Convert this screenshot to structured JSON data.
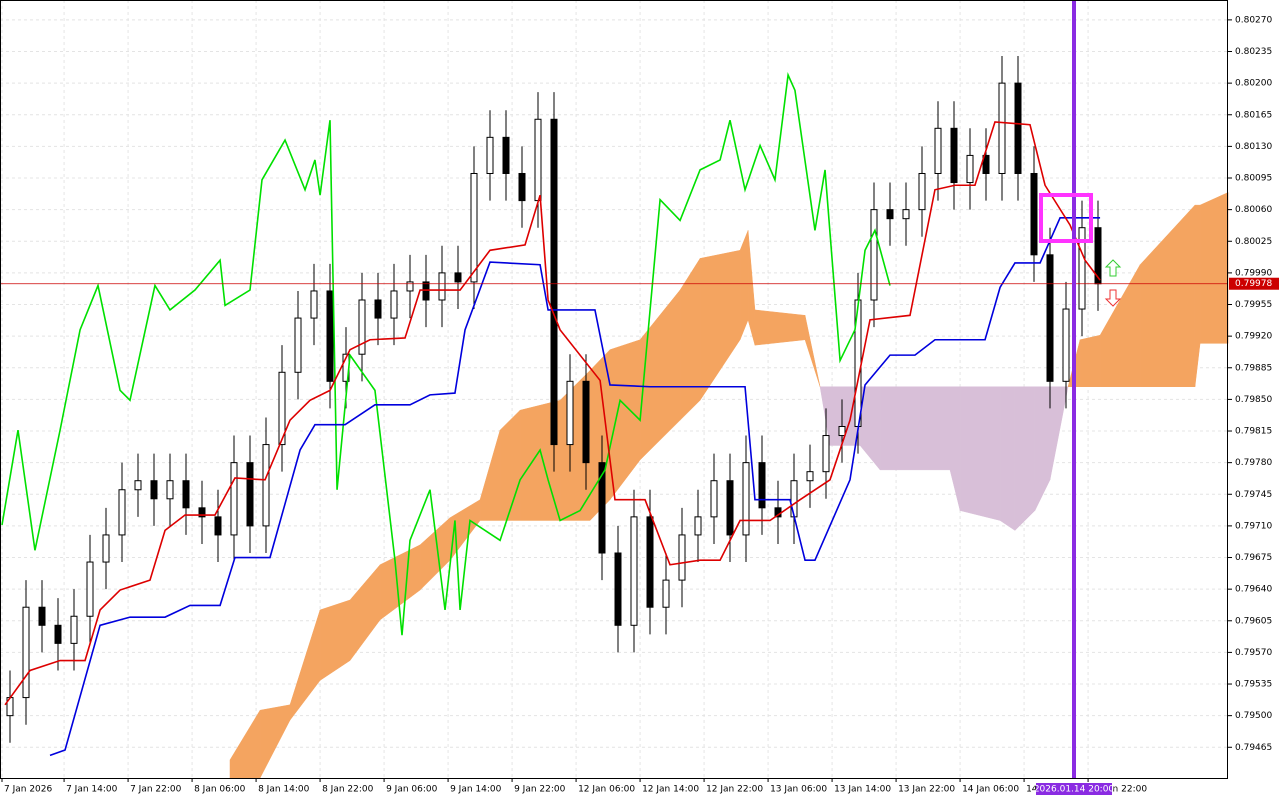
{
  "chart_data": {
    "type": "candlestick",
    "xlim": [
      -0.625,
      76.125
    ],
    "ylim": [
      0.79431,
      0.80292
    ],
    "grid": true,
    "xticks": [
      {
        "value": -0.5,
        "label": "7 Jan 2026"
      },
      {
        "value": 3.38,
        "label": "7 Jan 14:00"
      },
      {
        "value": 7.38,
        "label": "7 Jan 22:00"
      },
      {
        "value": 11.38,
        "label": "8 Jan 06:00"
      },
      {
        "value": 15.38,
        "label": "8 Jan 14:00"
      },
      {
        "value": 19.38,
        "label": "8 Jan 22:00"
      },
      {
        "value": 23.38,
        "label": "9 Jan 06:00"
      },
      {
        "value": 27.38,
        "label": "9 Jan 14:00"
      },
      {
        "value": 31.38,
        "label": "9 Jan 22:00"
      },
      {
        "value": 35.38,
        "label": "12 Jan 06:00"
      },
      {
        "value": 39.38,
        "label": "12 Jan 14:00"
      },
      {
        "value": 43.38,
        "label": "12 Jan 22:00"
      },
      {
        "value": 47.38,
        "label": "13 Jan 06:00"
      },
      {
        "value": 51.38,
        "label": "13 Jan 14:00"
      },
      {
        "value": 55.38,
        "label": "13 Jan 22:00"
      },
      {
        "value": 59.38,
        "label": "14 Jan 06:00"
      },
      {
        "value": 63.38,
        "label": "14 Jan 14:00"
      },
      {
        "value": 67.38,
        "label": "14 Jan 22:00"
      }
    ],
    "yticks": [
      {
        "value": 0.8027,
        "label": "0.80270"
      },
      {
        "value": 0.80235,
        "label": "0.80235"
      },
      {
        "value": 0.802,
        "label": "0.80200"
      },
      {
        "value": 0.80165,
        "label": "0.80165"
      },
      {
        "value": 0.8013,
        "label": "0.80130"
      },
      {
        "value": 0.80095,
        "label": "0.80095"
      },
      {
        "value": 0.8006,
        "label": "0.80060"
      },
      {
        "value": 0.80025,
        "label": "0.80025"
      },
      {
        "value": 0.7999,
        "label": "0.79990"
      },
      {
        "value": 0.79955,
        "label": "0.79955"
      },
      {
        "value": 0.7992,
        "label": "0.79920"
      },
      {
        "value": 0.79885,
        "label": "0.79885"
      },
      {
        "value": 0.7985,
        "label": "0.79850"
      },
      {
        "value": 0.79815,
        "label": "0.79815"
      },
      {
        "value": 0.7978,
        "label": "0.79780"
      },
      {
        "value": 0.79745,
        "label": "0.79745"
      },
      {
        "value": 0.7971,
        "label": "0.79710"
      },
      {
        "value": 0.79675,
        "label": "0.79675"
      },
      {
        "value": 0.7964,
        "label": "0.79640"
      },
      {
        "value": 0.79605,
        "label": "0.79605"
      },
      {
        "value": 0.7957,
        "label": "0.79570"
      },
      {
        "value": 0.79535,
        "label": "0.79535"
      },
      {
        "value": 0.795,
        "label": "0.79500"
      },
      {
        "value": 0.79465,
        "label": "0.79465"
      }
    ],
    "candles": {
      "up_color": "#ffffff",
      "down_color": "#000000",
      "x": [
        0,
        1,
        2,
        3,
        4,
        5,
        6,
        7,
        8,
        9,
        10,
        11,
        12,
        13,
        14,
        15,
        16,
        17,
        18,
        19,
        20,
        21,
        22,
        23,
        24,
        25,
        26,
        27,
        28,
        29,
        30,
        31,
        32,
        33,
        34,
        35,
        36,
        37,
        38,
        39,
        40,
        41,
        42,
        43,
        44,
        45,
        46,
        47,
        48,
        49,
        50,
        51,
        52,
        53,
        54,
        55,
        56,
        57,
        58,
        59,
        60,
        61,
        62,
        63,
        64,
        65,
        66,
        67,
        68
      ],
      "open": [
        0.795,
        0.7952,
        0.7962,
        0.796,
        0.7958,
        0.7961,
        0.7967,
        0.797,
        0.7975,
        0.7976,
        0.7974,
        0.7976,
        0.7973,
        0.7972,
        0.797,
        0.7978,
        0.7971,
        0.798,
        0.7988,
        0.7994,
        0.7997,
        0.7987,
        0.799,
        0.7996,
        0.7994,
        0.7997,
        0.7998,
        0.7996,
        0.7999,
        0.7998,
        0.801,
        0.8014,
        0.801,
        0.8007,
        0.8016,
        0.798,
        0.7987,
        0.7978,
        0.7968,
        0.796,
        0.7972,
        0.7962,
        0.7965,
        0.797,
        0.7972,
        0.7976,
        0.797,
        0.7978,
        0.7973,
        0.7972,
        0.7976,
        0.7977,
        0.7981,
        0.7982,
        0.7996,
        0.8006,
        0.8005,
        0.8006,
        0.801,
        0.8015,
        0.8009,
        0.8012,
        0.801,
        0.802,
        0.801,
        0.8001,
        0.7987,
        0.7995,
        0.8004
      ],
      "high": [
        0.7955,
        0.7965,
        0.7965,
        0.7963,
        0.7964,
        0.797,
        0.7973,
        0.7978,
        0.7979,
        0.7979,
        0.7979,
        0.7979,
        0.7976,
        0.7975,
        0.7981,
        0.7981,
        0.7983,
        0.7991,
        0.7997,
        0.8,
        0.8,
        0.7993,
        0.7999,
        0.7999,
        0.8,
        0.8001,
        0.8001,
        0.8002,
        0.8002,
        0.8013,
        0.8017,
        0.8017,
        0.8013,
        0.8019,
        0.8019,
        0.799,
        0.799,
        0.7981,
        0.7971,
        0.7975,
        0.7975,
        0.7968,
        0.7973,
        0.7975,
        0.7979,
        0.7979,
        0.7981,
        0.7981,
        0.7976,
        0.7979,
        0.798,
        0.7984,
        0.7985,
        0.7999,
        0.8009,
        0.8009,
        0.8009,
        0.8013,
        0.8018,
        0.8018,
        0.8015,
        0.8015,
        0.8023,
        0.8023,
        0.8013,
        0.8004,
        0.7998,
        0.8007,
        0.8007
      ],
      "low": [
        0.7947,
        0.7949,
        0.7957,
        0.7955,
        0.7955,
        0.7958,
        0.7964,
        0.7967,
        0.7972,
        0.7971,
        0.7971,
        0.797,
        0.7969,
        0.7967,
        0.7967,
        0.7968,
        0.7968,
        0.7977,
        0.7985,
        0.7991,
        0.7984,
        0.7984,
        0.7987,
        0.7991,
        0.7991,
        0.7994,
        0.7993,
        0.7993,
        0.7995,
        0.7995,
        0.8007,
        0.8007,
        0.8004,
        0.8004,
        0.7977,
        0.7977,
        0.7975,
        0.7965,
        0.7957,
        0.7957,
        0.7959,
        0.7959,
        0.7962,
        0.7967,
        0.7969,
        0.7967,
        0.7967,
        0.797,
        0.7969,
        0.7969,
        0.7973,
        0.7974,
        0.7978,
        0.7979,
        0.7993,
        0.8002,
        0.8002,
        0.8003,
        0.8007,
        0.8006,
        0.8006,
        0.8007,
        0.8007,
        0.8007,
        0.7998,
        0.7984,
        0.7984,
        0.7992,
        0.79948
      ],
      "close": [
        0.7952,
        0.7962,
        0.796,
        0.7958,
        0.7961,
        0.7967,
        0.797,
        0.7975,
        0.7976,
        0.7974,
        0.7976,
        0.7973,
        0.7972,
        0.797,
        0.7978,
        0.7971,
        0.798,
        0.7988,
        0.7994,
        0.7997,
        0.7987,
        0.799,
        0.7996,
        0.7994,
        0.7997,
        0.7998,
        0.7996,
        0.7999,
        0.7998,
        0.801,
        0.8014,
        0.801,
        0.8007,
        0.8016,
        0.798,
        0.7987,
        0.7978,
        0.7968,
        0.796,
        0.7972,
        0.7962,
        0.7965,
        0.797,
        0.7972,
        0.7976,
        0.797,
        0.7978,
        0.7973,
        0.7972,
        0.7976,
        0.7977,
        0.7981,
        0.7982,
        0.7996,
        0.8006,
        0.8005,
        0.8006,
        0.801,
        0.8015,
        0.8009,
        0.8012,
        0.801,
        0.802,
        0.801,
        0.8001,
        0.7987,
        0.7995,
        0.8004,
        0.79978
      ]
    },
    "cloud": {
      "up_color": "#f4a460",
      "down_color": "#d8bfd8",
      "x": [
        13.75,
        15.63,
        17.5,
        19.38,
        21.25,
        23.13,
        25.63,
        27.5,
        29.38,
        30.63,
        31.88,
        34.38,
        36.25,
        37.5,
        39.38,
        41.88,
        43.13,
        45.63,
        46.13,
        46.56,
        49.69,
        50.63,
        51.25,
        53.13,
        54.38,
        58.75,
        59.38,
        61.88,
        62.81,
        64.06,
        65,
        66.13,
        66.88,
        68.13,
        70.63,
        74.06,
        74.38,
        76.13
      ],
      "span_a": [
        0.79451,
        0.79506,
        0.79512,
        0.79617,
        0.79628,
        0.79667,
        0.79689,
        0.79719,
        0.79739,
        0.79816,
        0.79838,
        0.79849,
        0.79882,
        0.79905,
        0.79916,
        0.79971,
        0.80006,
        0.80015,
        0.80037,
        0.79949,
        0.79943,
        0.79864,
        0.79799,
        0.79799,
        0.79772,
        0.79772,
        0.79727,
        0.79716,
        0.79705,
        0.79727,
        0.79761,
        0.79864,
        0.79916,
        0.79921,
        0.79999,
        0.80065,
        0.80065,
        0.80079
      ],
      "span_b": [
        0.79431,
        0.79431,
        0.79495,
        0.79539,
        0.79561,
        0.79606,
        0.79639,
        0.79672,
        0.79716,
        0.79716,
        0.79716,
        0.79716,
        0.79716,
        0.79739,
        0.79783,
        0.79827,
        0.79849,
        0.79916,
        0.79938,
        0.7991,
        0.79916,
        0.79864,
        0.79864,
        0.79864,
        0.79864,
        0.79864,
        0.79864,
        0.79864,
        0.79864,
        0.79864,
        0.79864,
        0.79864,
        0.79864,
        0.79864,
        0.79864,
        0.79864,
        0.79912,
        0.79912
      ]
    },
    "lines": [
      {
        "color": "#00e000",
        "x": [
          -0.5,
          0.5,
          1.56,
          3.13,
          4.38,
          5.5,
          6.88,
          7.5,
          9.06,
          10,
          11.56,
          13.13,
          13.44,
          15,
          15.75,
          17.19,
          18.44,
          19.06,
          19.38,
          20,
          20.44,
          21.25,
          22.81,
          24.06,
          24.5,
          25,
          26.25,
          27.19,
          27.81,
          28.13,
          28.75,
          30.63,
          31.88,
          33.13,
          33.63,
          34.38,
          35.63,
          37.19,
          38.13,
          39.38,
          40.63,
          41.88,
          43.13,
          44.38,
          45,
          45.94,
          46.88,
          47.81,
          48.63,
          49.06,
          50.31,
          50.94,
          51.88,
          52.81,
          53.44,
          54.06,
          55
        ],
        "values": [
          0.79711,
          0.79816,
          0.79683,
          0.79816,
          0.79927,
          0.79976,
          0.7986,
          0.79849,
          0.79976,
          0.79949,
          0.79971,
          0.80004,
          0.79954,
          0.79971,
          0.80093,
          0.80137,
          0.80082,
          0.80115,
          0.80076,
          0.80159,
          0.7975,
          0.79899,
          0.7986,
          0.79672,
          0.79589,
          0.79694,
          0.7975,
          0.79617,
          0.79716,
          0.79617,
          0.79716,
          0.79694,
          0.79761,
          0.79794,
          0.79761,
          0.79716,
          0.79727,
          0.79772,
          0.79849,
          0.79827,
          0.80071,
          0.80048,
          0.80104,
          0.80115,
          0.80159,
          0.80082,
          0.80131,
          0.80093,
          0.80209,
          0.80192,
          0.80037,
          0.80104,
          0.79893,
          0.79927,
          0.80015,
          0.80037,
          0.79976
        ]
      },
      {
        "color": "#0000dd",
        "x": [
          2.5,
          3.44,
          5.63,
          7.5,
          9.69,
          11.25,
          13.13,
          14.06,
          16.25,
          18.13,
          19.06,
          20.94,
          22.81,
          25,
          26.25,
          27.81,
          28.44,
          30,
          33.13,
          33.63,
          36.56,
          37.5,
          40,
          45.94,
          46.56,
          48.75,
          49.69,
          50.31,
          52.5,
          53.44,
          55,
          56.56,
          57.81,
          60.94,
          61.88,
          62.81,
          64.38,
          65.63,
          68.13
        ],
        "values": [
          0.79456,
          0.79462,
          0.796,
          0.79609,
          0.79609,
          0.79622,
          0.79622,
          0.79675,
          0.79675,
          0.79794,
          0.79822,
          0.79822,
          0.79844,
          0.79844,
          0.79855,
          0.79857,
          0.79927,
          0.80002,
          0.79999,
          0.79949,
          0.79949,
          0.79866,
          0.79864,
          0.79864,
          0.79739,
          0.79739,
          0.79672,
          0.79672,
          0.79761,
          0.79866,
          0.79899,
          0.79899,
          0.79916,
          0.79916,
          0.79974,
          0.80001,
          0.80001,
          0.80051,
          0.80051
        ]
      },
      {
        "color": "#dd0000",
        "x": [
          -0.31,
          1.25,
          3.13,
          4.69,
          5.63,
          6.88,
          8.75,
          9.69,
          10.94,
          12.81,
          14.06,
          15.94,
          17.5,
          18.75,
          20,
          21.25,
          22.5,
          24.69,
          25.63,
          28.13,
          30,
          32.19,
          33.13,
          33.63,
          34.38,
          36.88,
          37.81,
          39.69,
          41.25,
          43.13,
          44.38,
          45.63,
          47.5,
          49.38,
          51.25,
          52.5,
          53.75,
          56.25,
          57.81,
          59.06,
          60.31,
          61.56,
          63.75,
          64.69,
          66.25,
          67.19,
          68.13
        ],
        "values": [
          0.79512,
          0.7955,
          0.79561,
          0.79561,
          0.79617,
          0.79639,
          0.7965,
          0.79705,
          0.79722,
          0.79722,
          0.79763,
          0.79761,
          0.79827,
          0.79849,
          0.7986,
          0.79905,
          0.79916,
          0.79918,
          0.79971,
          0.79971,
          0.80015,
          0.80021,
          0.80076,
          0.7996,
          0.79927,
          0.79871,
          0.79739,
          0.79739,
          0.79667,
          0.79672,
          0.79672,
          0.79716,
          0.79716,
          0.79739,
          0.79761,
          0.79827,
          0.79938,
          0.79943,
          0.80082,
          0.80087,
          0.80087,
          0.80157,
          0.80154,
          0.80087,
          0.80043,
          0.80004,
          0.79982
        ]
      }
    ],
    "last_price": {
      "value": 0.79978,
      "label": "0.79978",
      "color": "#cc0000"
    },
    "marker": {
      "x": 66.5,
      "label": "2026.01.14 20:00",
      "color": "#8a2be2"
    }
  }
}
